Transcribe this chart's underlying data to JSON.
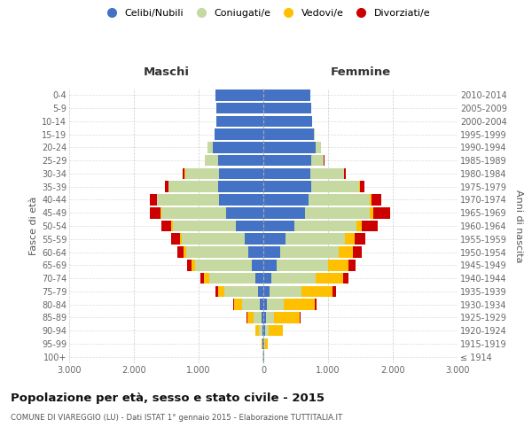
{
  "age_groups": [
    "100+",
    "95-99",
    "90-94",
    "85-89",
    "80-84",
    "75-79",
    "70-74",
    "65-69",
    "60-64",
    "55-59",
    "50-54",
    "45-49",
    "40-44",
    "35-39",
    "30-34",
    "25-29",
    "20-24",
    "15-19",
    "10-14",
    "5-9",
    "0-4"
  ],
  "birth_years": [
    "≤ 1914",
    "1915-1919",
    "1920-1924",
    "1925-1929",
    "1930-1934",
    "1935-1939",
    "1940-1944",
    "1945-1949",
    "1950-1954",
    "1955-1959",
    "1960-1964",
    "1965-1969",
    "1970-1974",
    "1975-1979",
    "1980-1984",
    "1985-1989",
    "1990-1994",
    "1995-1999",
    "2000-2004",
    "2005-2009",
    "2010-2014"
  ],
  "male": {
    "single": [
      5,
      10,
      20,
      30,
      50,
      80,
      120,
      180,
      230,
      290,
      420,
      580,
      680,
      700,
      680,
      700,
      780,
      750,
      730,
      730,
      740
    ],
    "married": [
      2,
      10,
      50,
      120,
      280,
      520,
      720,
      870,
      960,
      970,
      980,
      1000,
      960,
      760,
      530,
      200,
      80,
      10,
      0,
      0,
      0
    ],
    "widowed": [
      1,
      10,
      50,
      100,
      120,
      100,
      80,
      60,
      40,
      30,
      20,
      15,
      10,
      5,
      5,
      2,
      0,
      0,
      0,
      0,
      0
    ],
    "divorced": [
      0,
      0,
      2,
      5,
      20,
      40,
      55,
      70,
      100,
      130,
      160,
      160,
      100,
      60,
      30,
      5,
      2,
      0,
      0,
      0,
      0
    ]
  },
  "female": {
    "single": [
      8,
      15,
      30,
      40,
      55,
      90,
      130,
      200,
      260,
      340,
      480,
      640,
      700,
      740,
      720,
      740,
      810,
      780,
      750,
      740,
      720
    ],
    "married": [
      2,
      10,
      50,
      120,
      260,
      500,
      680,
      800,
      900,
      920,
      960,
      1000,
      940,
      740,
      520,
      190,
      75,
      10,
      0,
      0,
      0
    ],
    "widowed": [
      5,
      50,
      220,
      400,
      480,
      480,
      420,
      320,
      220,
      150,
      80,
      60,
      30,
      15,
      10,
      5,
      2,
      0,
      0,
      0,
      0
    ],
    "divorced": [
      0,
      0,
      5,
      10,
      30,
      60,
      80,
      100,
      140,
      170,
      250,
      260,
      150,
      70,
      30,
      8,
      2,
      0,
      0,
      0,
      0
    ]
  },
  "colors": {
    "single": "#4472c4",
    "married": "#c5d9a0",
    "widowed": "#ffc000",
    "divorced": "#cc0000"
  },
  "legend_labels": [
    "Celibi/Nubili",
    "Coniugati/e",
    "Vedovi/e",
    "Divorziati/e"
  ],
  "title": "Popolazione per età, sesso e stato civile - 2015",
  "subtitle": "COMUNE DI VIAREGGIO (LU) - Dati ISTAT 1° gennaio 2015 - Elaborazione TUTTITALIA.IT",
  "ylabel_left": "Fasce di età",
  "ylabel_right": "Anni di nascita",
  "xlabel_left": "Maschi",
  "xlabel_right": "Femmine",
  "xlim": 3000,
  "bg_color": "#ffffff",
  "grid_color": "#cccccc"
}
